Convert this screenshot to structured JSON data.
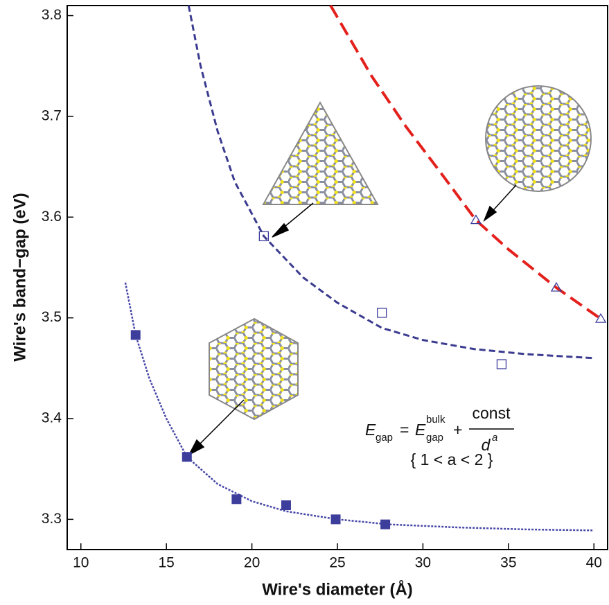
{
  "chart_data": {
    "type": "scatter",
    "xlabel": "Wire's diameter (Å)",
    "ylabel": "Wire's band−gap (eV)",
    "xlim": [
      9.2,
      40.8
    ],
    "ylim": [
      3.27,
      3.81
    ],
    "xticks": [
      10,
      15,
      20,
      25,
      30,
      35,
      40
    ],
    "yticks": [
      3.3,
      3.4,
      3.5,
      3.6,
      3.7,
      3.8
    ],
    "grid": false,
    "series": [
      {
        "style": "marker",
        "marker": "filled-square",
        "color": "#3d3d9c",
        "x": [
          13.2,
          16.2,
          19.1,
          22.0,
          24.9,
          27.8
        ],
        "values": [
          3.483,
          3.362,
          3.32,
          3.314,
          3.3,
          3.295
        ]
      },
      {
        "style": "marker",
        "marker": "open-square",
        "color": "#3d3d9c",
        "x": [
          20.7,
          27.6,
          34.6
        ],
        "values": [
          3.581,
          3.505,
          3.454
        ]
      },
      {
        "style": "marker",
        "marker": "open-triangle",
        "color": "#3d3d9c",
        "x": [
          33.1,
          37.8,
          40.4
        ],
        "values": [
          3.597,
          3.53,
          3.499
        ]
      },
      {
        "style": "line",
        "dash": "3,2",
        "width": 2.5,
        "color": "#4747a8",
        "x": [
          12.6,
          13.2,
          14,
          15,
          16.2,
          18,
          20,
          22,
          25,
          28,
          32,
          36,
          40
        ],
        "values": [
          3.535,
          3.483,
          3.44,
          3.4,
          3.362,
          3.335,
          3.318,
          3.308,
          3.3,
          3.295,
          3.292,
          3.29,
          3.289
        ]
      },
      {
        "style": "line",
        "dash": "9,5",
        "width": 3,
        "color": "#3b3b8f",
        "x": [
          16.3,
          17,
          18,
          19,
          20.7,
          23,
          25,
          27.6,
          30,
          33,
          36,
          40
        ],
        "values": [
          3.81,
          3.75,
          3.685,
          3.635,
          3.581,
          3.54,
          3.515,
          3.49,
          3.478,
          3.469,
          3.464,
          3.46
        ]
      },
      {
        "style": "line",
        "dash": "20,9",
        "width": 4,
        "color": "#e3201c",
        "x": [
          24.6,
          27,
          29,
          31,
          33.1,
          35,
          37.8,
          40.4
        ],
        "values": [
          3.81,
          3.74,
          3.69,
          3.645,
          3.597,
          3.568,
          3.53,
          3.499
        ]
      }
    ],
    "formula": {
      "lhs": "E",
      "lhs_sub": "gap",
      "equals": "=",
      "rhs": "E",
      "rhs_sub": "gap",
      "rhs_sup": "bulk",
      "plus": "+",
      "numerator": "const",
      "denominator": "d",
      "exponent": "a"
    },
    "constraint": "{ 1 < a < 2 }"
  }
}
